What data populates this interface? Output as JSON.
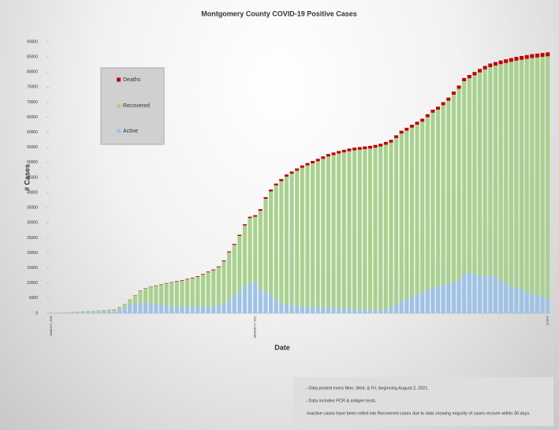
{
  "chart_data": {
    "type": "stacked_bar",
    "title": "Montgomery County COVID-19 Positive Cases",
    "x_label": "Date",
    "y_label": "# Cases",
    "categories": [
      "MARCH 9, 2020",
      null,
      null,
      null,
      null,
      null,
      null,
      null,
      null,
      null,
      null,
      null,
      null,
      null,
      null,
      null,
      null,
      null,
      null,
      null,
      null,
      null,
      null,
      null,
      null,
      null,
      null,
      null,
      null,
      null,
      null,
      null,
      null,
      null,
      null,
      null,
      null,
      null,
      null,
      "JANUARY 4, 2021",
      null,
      null,
      null,
      null,
      null,
      null,
      null,
      null,
      null,
      null,
      null,
      null,
      null,
      null,
      null,
      null,
      null,
      null,
      null,
      null,
      null,
      null,
      null,
      null,
      null,
      null,
      null,
      null,
      null,
      null,
      null,
      null,
      null,
      null,
      null,
      null,
      null,
      null,
      null,
      null,
      null,
      null,
      null,
      null,
      null,
      null,
      null,
      null,
      null,
      null,
      null,
      null,
      null,
      null,
      null,
      "15-OCT"
    ],
    "series": [
      {
        "name": "Active",
        "color": "#9dc3e6",
        "values": [
          40,
          80,
          150,
          220,
          280,
          330,
          380,
          420,
          450,
          480,
          500,
          550,
          700,
          1300,
          2000,
          2800,
          3400,
          3600,
          3500,
          3200,
          3000,
          2800,
          2600,
          2400,
          2300,
          2200,
          2100,
          2100,
          2100,
          2200,
          2300,
          2400,
          2600,
          3200,
          4500,
          6000,
          7500,
          9000,
          10000,
          10500,
          8000,
          7000,
          6000,
          4500,
          3500,
          3000,
          2700,
          2500,
          2300,
          2200,
          2100,
          2000,
          2000,
          1900,
          1800,
          1700,
          1600,
          1500,
          1400,
          1300,
          1200,
          1100,
          1100,
          1200,
          1500,
          2000,
          3000,
          4000,
          4800,
          5500,
          6200,
          7000,
          7800,
          8500,
          9000,
          9500,
          10000,
          10500,
          11000,
          13000,
          13500,
          13000,
          12500,
          12500,
          12500,
          12000,
          11000,
          10000,
          9000,
          8500,
          8000,
          7000,
          6500,
          6000,
          5500,
          5000
        ]
      },
      {
        "name": "Recovered",
        "color": "#a9d18e",
        "values": [
          8,
          16,
          42,
          68,
          104,
          150,
          195,
          250,
          315,
          380,
          455,
          500,
          545,
          640,
          930,
          1620,
          2510,
          3800,
          4690,
          5480,
          6070,
          6660,
          7250,
          7740,
          8230,
          8620,
          9110,
          9500,
          9990,
          10580,
          11270,
          11860,
          12650,
          14030,
          15700,
          16670,
          18140,
          20100,
          21560,
          21520,
          25980,
          30940,
          34400,
          37860,
          40320,
          42300,
          43580,
          44760,
          45940,
          46820,
          47600,
          48390,
          49180,
          50070,
          50660,
          51250,
          51740,
          52230,
          52620,
          52910,
          53200,
          53500,
          53790,
          54090,
          54380,
          54580,
          55070,
          55560,
          55750,
          56040,
          56330,
          56520,
          57210,
          58000,
          58490,
          59480,
          60470,
          61960,
          63440,
          63920,
          64400,
          65880,
          67360,
          68340,
          69120,
          70100,
          71590,
          72980,
          74370,
          75260,
          76050,
          77340,
          78130,
          78820,
          79510,
          80200
        ]
      },
      {
        "name": "Deaths",
        "color": "#c00000",
        "values": [
          2,
          4,
          8,
          12,
          16,
          20,
          25,
          30,
          35,
          40,
          45,
          50,
          55,
          60,
          70,
          80,
          90,
          100,
          110,
          120,
          130,
          140,
          150,
          160,
          170,
          180,
          190,
          200,
          210,
          220,
          230,
          240,
          250,
          270,
          300,
          330,
          360,
          400,
          440,
          480,
          520,
          560,
          600,
          640,
          680,
          700,
          720,
          740,
          760,
          780,
          800,
          810,
          820,
          830,
          840,
          850,
          860,
          870,
          880,
          890,
          900,
          900,
          910,
          910,
          920,
          920,
          930,
          940,
          950,
          960,
          970,
          980,
          990,
          1000,
          1010,
          1020,
          1030,
          1040,
          1060,
          1080,
          1100,
          1120,
          1140,
          1160,
          1180,
          1200,
          1210,
          1220,
          1230,
          1240,
          1250,
          1260,
          1270,
          1280,
          1290,
          1300
        ]
      }
    ],
    "ylim": [
      0,
      90000
    ],
    "yticks": [
      0,
      5000,
      10000,
      15000,
      20000,
      25000,
      30000,
      35000,
      40000,
      45000,
      50000,
      55000,
      60000,
      65000,
      70000,
      75000,
      80000,
      85000,
      90000
    ],
    "grid": false,
    "legend": "upper left",
    "notes": [
      "- Data posted every Mon, Wed, & Fri, beginning August 2, 2021.",
      "- Data includes PCR & antigen tests.",
      "-Inactive cases have been rolled into Recovered cases  due to data showing majority of cases recover within 30 days."
    ]
  }
}
